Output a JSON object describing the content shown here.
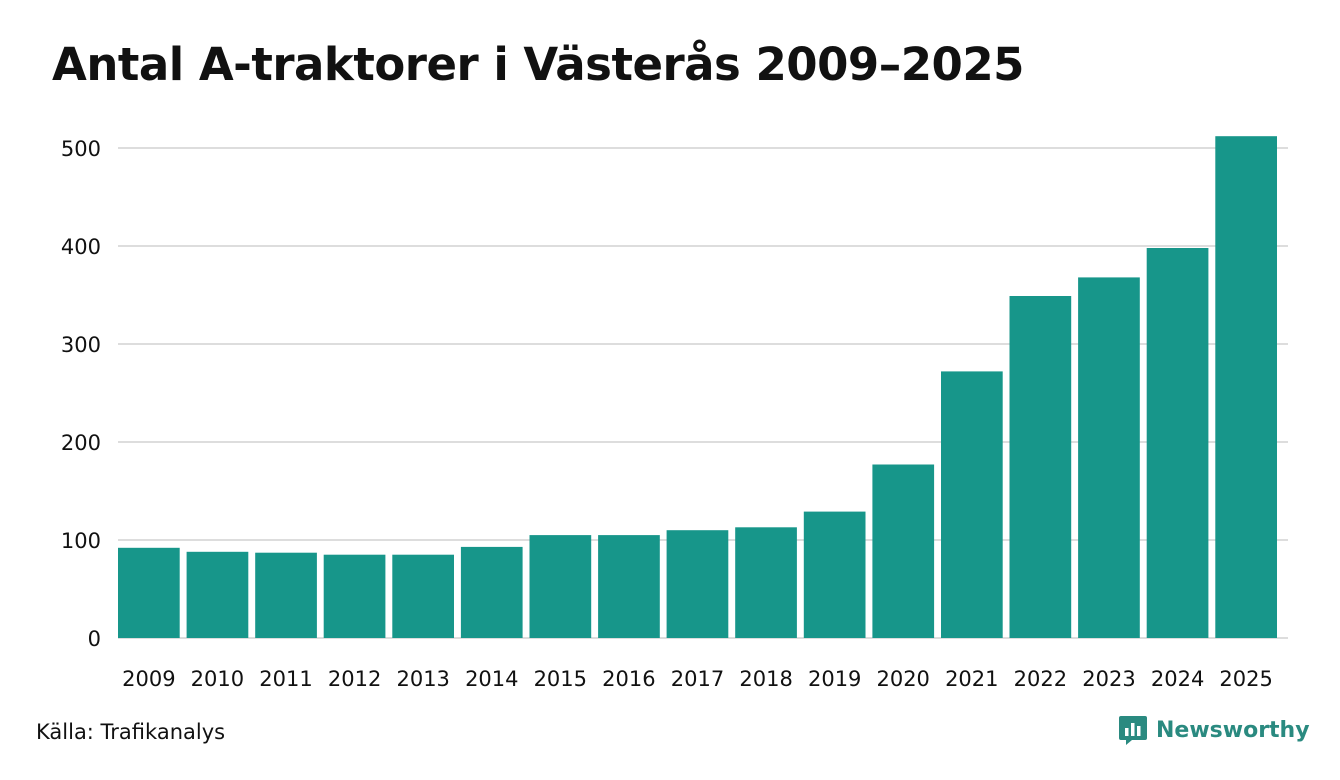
{
  "chart_data": {
    "type": "bar",
    "title": "Antal A-traktorer i Västerås 2009–2025",
    "xlabel": "",
    "ylabel": "",
    "categories": [
      "2009",
      "2010",
      "2011",
      "2012",
      "2013",
      "2014",
      "2015",
      "2016",
      "2017",
      "2018",
      "2019",
      "2020",
      "2021",
      "2022",
      "2023",
      "2024",
      "2025"
    ],
    "values": [
      92,
      88,
      87,
      85,
      85,
      93,
      105,
      105,
      110,
      113,
      129,
      177,
      272,
      349,
      368,
      398,
      512
    ],
    "ylim": [
      0,
      520
    ],
    "yticks": [
      0,
      100,
      200,
      300,
      400,
      500
    ],
    "grid": true,
    "bar_color": "#17968a",
    "grid_color": "#dddddd"
  },
  "footer": {
    "source": "Källa: Trafikanalys",
    "brand": "Newsworthy",
    "brand_color": "#2a8a80"
  }
}
